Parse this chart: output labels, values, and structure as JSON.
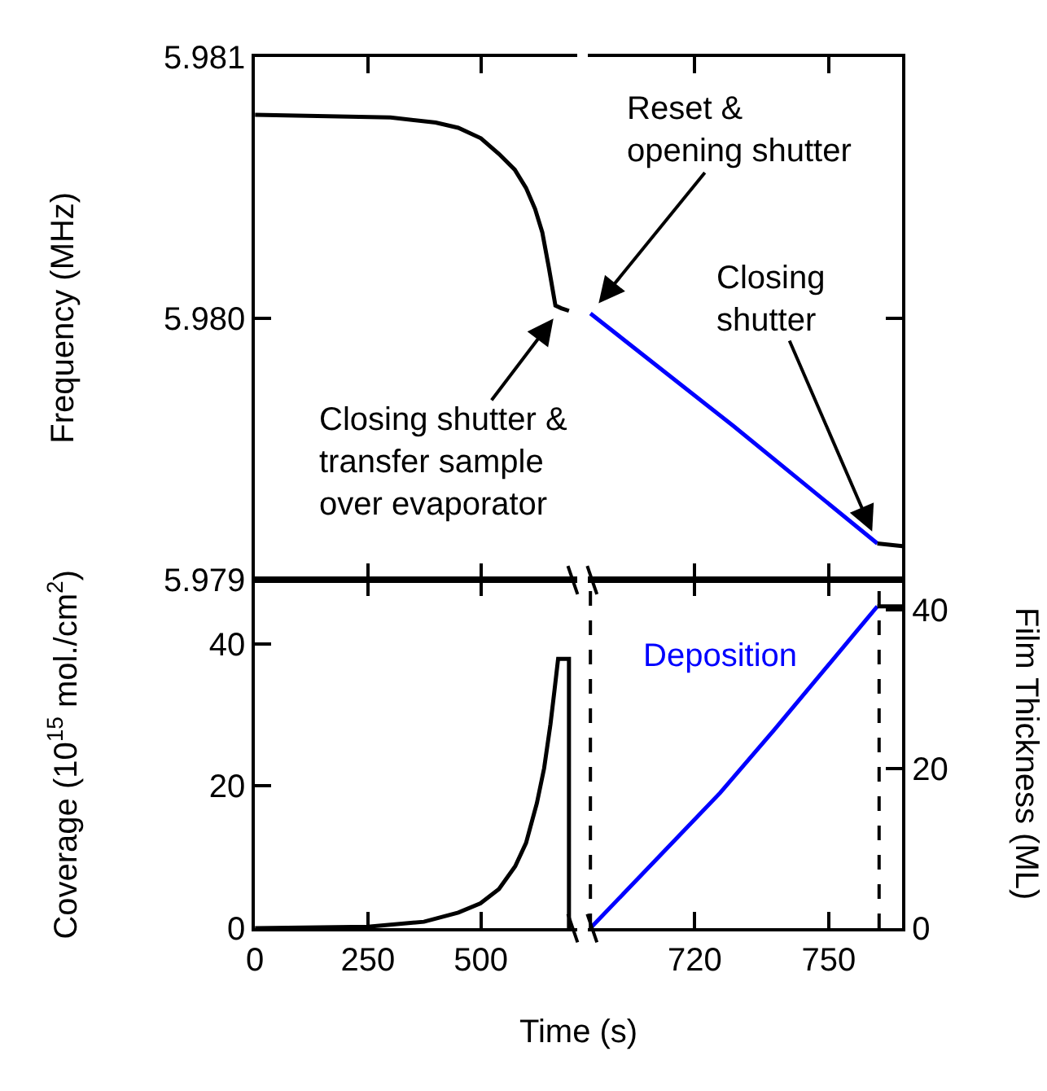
{
  "chart_data": [
    {
      "type": "line",
      "ylabel": "Frequency (MHz)",
      "xlim": [
        0,
        713
      ],
      "xticks": [
        {
          "value": 0,
          "label": null
        },
        {
          "value": 250,
          "label": null
        },
        {
          "value": 500,
          "label": null
        }
      ],
      "ylim": [
        5.979,
        5.981
      ],
      "yticks": [
        5.979,
        {
          "value": 5.98,
          "label": "5.980"
        },
        5.981
      ],
      "tick_labels": "y",
      "series": [
        {
          "color": "#000000",
          "x": [
            0,
            300,
            400,
            450,
            500,
            540,
            575,
            600,
            620,
            636,
            650,
            660,
            665,
            678,
            695
          ],
          "values": [
            5.98078,
            5.98077,
            5.98075,
            5.98073,
            5.98069,
            5.98063,
            5.98057,
            5.9805,
            5.98042,
            5.98033,
            5.9802,
            5.9801,
            5.98005,
            5.98004,
            5.98003
          ]
        }
      ],
      "annotations": [
        {
          "text": "Closing shutter &\ntransfer sample\nover evaporator",
          "x": 678,
          "y": 5.98004
        }
      ]
    },
    {
      "type": "line",
      "xlim": [
        696,
        766.5
      ],
      "xticks": [
        {
          "value": 720,
          "label": null
        },
        {
          "value": 750,
          "label": null
        }
      ],
      "ylim": [
        5.979,
        5.981
      ],
      "yticks": [
        {
          "value": 5.979,
          "label": null
        },
        {
          "value": 5.98,
          "label": null
        },
        {
          "value": 5.981,
          "label": null
        }
      ],
      "tick_labels": false,
      "series": [
        {
          "color": "#0000ff",
          "x": [
            696.6,
            728.6,
            760.9
          ],
          "values": [
            5.98002,
            5.97959,
            5.97914
          ]
        },
        {
          "color": "#000000",
          "x": [
            760.9,
            766.5
          ],
          "values": [
            5.97914,
            5.97913
          ]
        }
      ],
      "annotations": [
        {
          "text": "Reset &\nopening shutter",
          "x": 696.6,
          "y": 5.98002
        },
        {
          "text": "Closing\nshutter",
          "x": 760.9,
          "y": 5.97914
        }
      ]
    },
    {
      "type": "line",
      "xlabel": "Time (s)",
      "ylabel": "Coverage (10$^{15}$ mol./cm$^{2}$)",
      "xlim": [
        0,
        713
      ],
      "xticks": [
        0,
        250,
        500
      ],
      "ylim": [
        0,
        49
      ],
      "yticks": [
        0,
        20,
        40
      ],
      "series": [
        {
          "color": "#000000",
          "x": [
            0,
            250,
            374,
            450,
            499,
            540,
            576,
            600,
            624,
            640,
            654,
            663,
            671,
            695,
            695
          ],
          "values": [
            0,
            0.2,
            0.9,
            2.2,
            3.5,
            5.5,
            8.7,
            12,
            17.6,
            22.5,
            28.7,
            33.5,
            37.9,
            37.9,
            0
          ]
        }
      ]
    },
    {
      "type": "line",
      "ylabel": "Film Thickness (ML)",
      "xlim": [
        696,
        766.5
      ],
      "xticks": [
        720,
        750
      ],
      "ylim": [
        0,
        43.7
      ],
      "yticks": [
        0,
        20,
        40
      ],
      "series": [
        {
          "name": "Deposition",
          "color": "#0000ff",
          "x": [
            696.6,
            725.7,
            737.8,
            760.9
          ],
          "values": [
            0,
            17,
            24.9,
            40.4
          ]
        },
        {
          "color": "#000000",
          "x": [
            760.9,
            766.5
          ],
          "values": [
            40.4,
            40.4
          ]
        }
      ],
      "ref_lines": [
        {
          "axis": "x",
          "value": 696.6,
          "line_style": "dashed",
          "color": "#000000"
        },
        {
          "axis": "x",
          "value": 761.3,
          "line_style": "dashed",
          "color": "#000000"
        }
      ]
    }
  ]
}
